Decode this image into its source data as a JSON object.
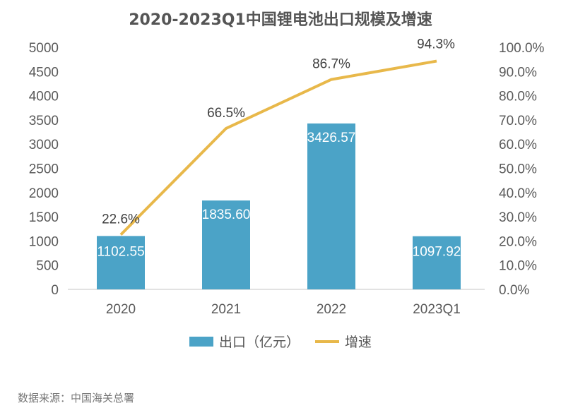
{
  "chart_data": {
    "type": "bar+line",
    "title": "2020-2023Q1中国锂电池出口规模及增速",
    "categories": [
      "2020",
      "2021",
      "2022",
      "2023Q1"
    ],
    "series": [
      {
        "name": "出口（亿元）",
        "type": "bar",
        "axis": "left",
        "color": "#4BA3C7",
        "values": [
          1102.55,
          1835.6,
          3426.57,
          1097.92
        ],
        "labels": [
          "1102.55",
          "1835.60",
          "3426.57",
          "1097.92"
        ]
      },
      {
        "name": "增速",
        "type": "line",
        "axis": "right",
        "color": "#E8B84A",
        "values": [
          22.6,
          66.5,
          86.7,
          94.3
        ],
        "labels": [
          "22.6%",
          "66.5%",
          "86.7%",
          "94.3%"
        ]
      }
    ],
    "left_axis": {
      "ylim": [
        0,
        5000
      ],
      "ticks": [
        "0",
        "500",
        "1000",
        "1500",
        "2000",
        "2500",
        "3000",
        "3500",
        "4000",
        "4500",
        "5000"
      ]
    },
    "right_axis": {
      "ylim": [
        0,
        100
      ],
      "ticks": [
        "0.0%",
        "10.0%",
        "20.0%",
        "30.0%",
        "40.0%",
        "50.0%",
        "60.0%",
        "70.0%",
        "80.0%",
        "90.0%",
        "100.0%"
      ]
    },
    "legend_position": "bottom",
    "grid": false
  },
  "source": "数据来源：中国海关总署"
}
